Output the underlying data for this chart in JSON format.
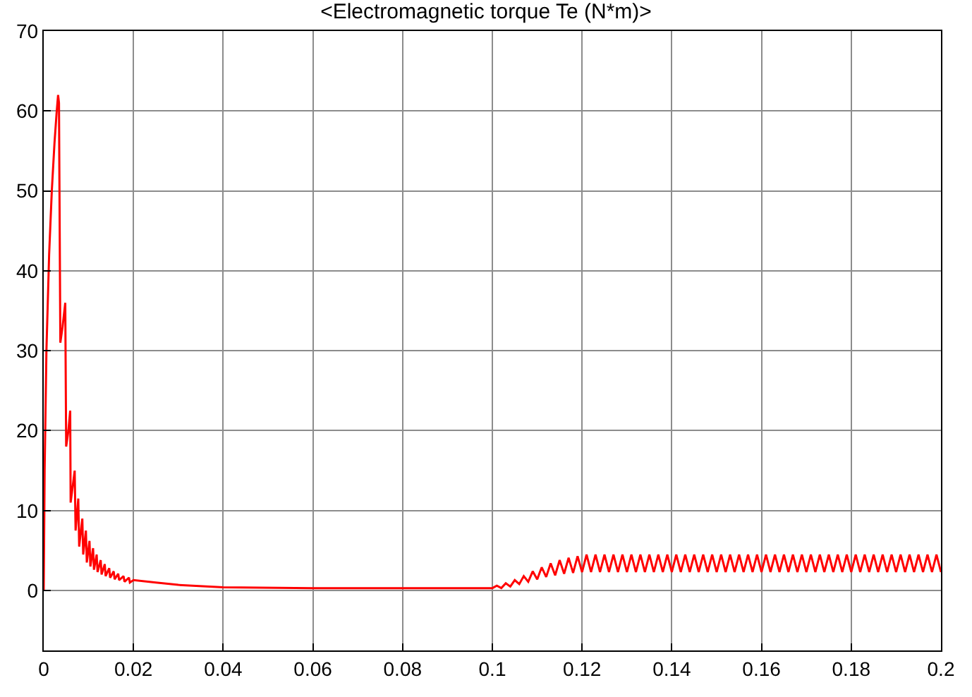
{
  "chart_data": {
    "type": "line",
    "title": "<Electromagnetic torque Te (N*m)>",
    "xlim": [
      0,
      0.2
    ],
    "xticks": [
      0,
      0.02,
      0.04,
      0.06,
      0.08,
      0.1,
      0.12,
      0.14,
      0.16,
      0.18,
      0.2
    ],
    "ylim": [
      -7.5,
      70
    ],
    "yticks": [
      0,
      10,
      20,
      30,
      40,
      50,
      60,
      70
    ],
    "grid": true,
    "marker": "none",
    "line_style": "solid",
    "series": [
      {
        "color": "#ff0000",
        "x": [
          0,
          0.0002,
          0.0006,
          0.0012,
          0.0018,
          0.0024,
          0.0029,
          0.0032,
          0.0034,
          0.0037,
          0.0042,
          0.0048,
          0.005,
          0.0055,
          0.0059,
          0.006,
          0.0069,
          0.0071,
          0.0077,
          0.0079,
          0.0086,
          0.0088,
          0.0094,
          0.0096,
          0.0102,
          0.0104,
          0.011,
          0.0112,
          0.0118,
          0.012,
          0.0127,
          0.0129,
          0.0136,
          0.0138,
          0.0146,
          0.0148,
          0.0156,
          0.0158,
          0.0166,
          0.0168,
          0.0178,
          0.018,
          0.019,
          0.0192,
          0.02,
          0.025,
          0.03,
          0.04,
          0.06,
          0.08,
          0.1,
          0.101,
          0.102,
          0.103,
          0.104,
          0.105,
          0.106,
          0.107,
          0.108,
          0.109,
          0.11,
          0.111,
          0.112,
          0.113,
          0.114,
          0.115,
          0.116,
          0.117,
          0.118,
          0.119,
          0.12,
          0.121,
          0.122,
          0.123,
          0.124,
          0.125,
          0.126,
          0.127,
          0.128,
          0.129,
          0.13,
          0.131,
          0.132,
          0.133,
          0.134,
          0.135,
          0.136,
          0.137,
          0.138,
          0.139,
          0.14,
          0.141,
          0.142,
          0.143,
          0.144,
          0.145,
          0.146,
          0.147,
          0.148,
          0.149,
          0.15,
          0.151,
          0.152,
          0.153,
          0.154,
          0.155,
          0.156,
          0.157,
          0.158,
          0.159,
          0.16,
          0.161,
          0.162,
          0.163,
          0.164,
          0.165,
          0.166,
          0.167,
          0.168,
          0.169,
          0.17,
          0.171,
          0.172,
          0.173,
          0.174,
          0.175,
          0.176,
          0.177,
          0.178,
          0.179,
          0.18,
          0.181,
          0.182,
          0.183,
          0.184,
          0.185,
          0.186,
          0.187,
          0.188,
          0.189,
          0.19,
          0.191,
          0.192,
          0.193,
          0.194,
          0.195,
          0.196,
          0.197,
          0.198,
          0.199,
          0.2
        ],
        "values": [
          0,
          15,
          30,
          42,
          50,
          56,
          60,
          62,
          61,
          31,
          33,
          36,
          18,
          20,
          22.5,
          11,
          15,
          7.5,
          11.5,
          5.5,
          9,
          4.5,
          7.5,
          3.5,
          6.2,
          3,
          5.3,
          2.6,
          4.5,
          2.3,
          3.8,
          2,
          3.3,
          1.8,
          2.8,
          1.6,
          2.4,
          1.4,
          2.1,
          1.3,
          1.8,
          1.1,
          1.6,
          1.0,
          1.3,
          1.0,
          0.7,
          0.4,
          0.3,
          0.3,
          0.3,
          0.6,
          0.3,
          0.9,
          0.5,
          1.3,
          0.8,
          1.8,
          1.1,
          2.4,
          1.4,
          2.9,
          1.7,
          3.4,
          1.9,
          3.8,
          2.1,
          4.1,
          2.2,
          4.3,
          2.3,
          4.5,
          2.3,
          4.5,
          2.3,
          4.5,
          2.3,
          4.5,
          2.3,
          4.5,
          2.3,
          4.5,
          2.3,
          4.5,
          2.3,
          4.5,
          2.3,
          4.5,
          2.3,
          4.5,
          2.3,
          4.5,
          2.3,
          4.5,
          2.3,
          4.5,
          2.3,
          4.5,
          2.3,
          4.5,
          2.3,
          4.5,
          2.3,
          4.5,
          2.3,
          4.5,
          2.3,
          4.5,
          2.3,
          4.5,
          2.3,
          4.5,
          2.3,
          4.5,
          2.3,
          4.5,
          2.3,
          4.5,
          2.3,
          4.5,
          2.3,
          4.5,
          2.3,
          4.5,
          2.3,
          4.5,
          2.3,
          4.5,
          2.3,
          4.5,
          2.3,
          4.5,
          2.3,
          4.5,
          2.3,
          4.5,
          2.3,
          4.5,
          2.3,
          4.5,
          2.3,
          4.5,
          2.3,
          4.5,
          2.3,
          4.5,
          2.3,
          4.5,
          2.3,
          4.5,
          2.3
        ]
      }
    ]
  }
}
